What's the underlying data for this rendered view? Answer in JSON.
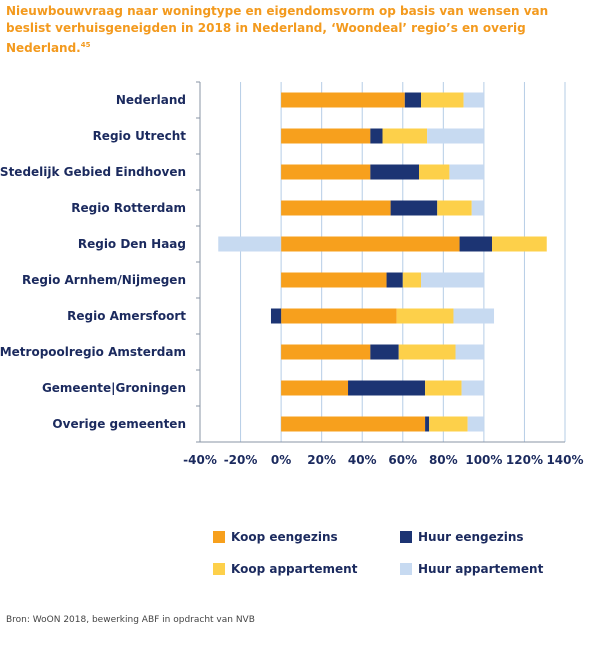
{
  "title": "Nieuwbouwvraag naar woningtype en eigendomsvorm op basis van wensen van beslist verhuisgeneigden in 2018 in Nederland, ‘Woondeal’ regio’s en overig Nederland.",
  "title_footnote": "45",
  "source": "Bron: WoON 2018, bewerking ABF in opdracht van NVB",
  "colors": {
    "koop_eengezins": "#f7a01d",
    "huur_eengezins": "#1c3473",
    "koop_appartement": "#fdd04a",
    "huur_appartement": "#c7daf1",
    "label": "#1b2a5e",
    "grid": "#b6cde6"
  },
  "chart_data": {
    "type": "bar",
    "orientation": "horizontal",
    "stacked": true,
    "categories": [
      "Nederland",
      "Regio Utrecht",
      "Stedelijk Gebied Eindhoven",
      "Regio Rotterdam",
      "Regio Den Haag",
      "Regio Arnhem/Nijmegen",
      "Regio Amersfoort",
      "Metropoolregio Amsterdam",
      "Gemeente|Groningen",
      "Overige gemeenten"
    ],
    "series": [
      {
        "name": "Koop eengezins",
        "color": "#f7a01d",
        "values": [
          61,
          44,
          44,
          54,
          88,
          52,
          57,
          44,
          33,
          71
        ]
      },
      {
        "name": "Huur eengezins",
        "color": "#1c3473",
        "values": [
          8,
          6,
          24,
          23,
          16,
          8,
          -5,
          14,
          38,
          2
        ]
      },
      {
        "name": "Koop appartement",
        "color": "#fdd04a",
        "values": [
          21,
          22,
          15,
          17,
          27,
          9,
          28,
          28,
          18,
          19
        ]
      },
      {
        "name": "Huur appartement",
        "color": "#c7daf1",
        "values": [
          10,
          28,
          17,
          6,
          -31,
          31,
          20,
          14,
          11,
          8
        ]
      }
    ],
    "xlim": [
      -40,
      140
    ],
    "xticks": [
      "-40%",
      "-20%",
      "0%",
      "20%",
      "40%",
      "60%",
      "80%",
      "100%",
      "120%",
      "140%"
    ],
    "xtick_values": [
      -40,
      -20,
      0,
      20,
      40,
      60,
      80,
      100,
      120,
      140
    ],
    "grid": true,
    "legend_position": "bottom"
  },
  "legend": [
    {
      "label": "Koop eengezins",
      "color": "#f7a01d"
    },
    {
      "label": "Huur eengezins",
      "color": "#1c3473"
    },
    {
      "label": "Koop appartement",
      "color": "#fdd04a"
    },
    {
      "label": "Huur appartement",
      "color": "#c7daf1"
    }
  ]
}
